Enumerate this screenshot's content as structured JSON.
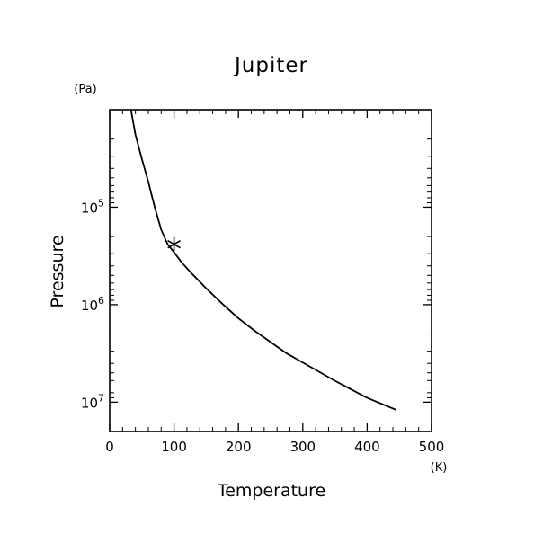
{
  "chart_data": {
    "type": "line",
    "title": "Jupiter",
    "xlabel": "Temperature",
    "ylabel": "Pressure",
    "x_unit": "(K)",
    "y_unit": "(Pa)",
    "xlim": [
      0,
      500
    ],
    "ylim": [
      10000.0,
      20000000.0
    ],
    "y_scale": "log",
    "y_inverted": true,
    "grid": false,
    "x_ticks": [
      0,
      100,
      200,
      300,
      400,
      500
    ],
    "x_tick_labels": [
      "0",
      "100",
      "200",
      "300",
      "400",
      "500"
    ],
    "y_ticks": [
      100000.0,
      1000000.0,
      10000000.0
    ],
    "y_tick_labels": [
      {
        "base": "10",
        "exp": "5"
      },
      {
        "base": "10",
        "exp": "6"
      },
      {
        "base": "10",
        "exp": "7"
      }
    ],
    "series": [
      {
        "x": [
          33,
          40,
          50,
          60,
          70,
          80,
          90,
          100,
          112,
          125,
          150,
          175,
          200,
          225,
          250,
          275,
          300,
          350,
          400,
          445
        ],
        "y": [
          10000,
          18000,
          32000,
          55000,
          100000,
          170000,
          240000,
          290000,
          370000,
          460000,
          680000,
          980000,
          1380000,
          1850000,
          2420000,
          3160000,
          3920000,
          6040000,
          9040000,
          12000000
        ]
      }
    ],
    "marker": {
      "symbol": "asterisk",
      "x": 100,
      "y": 240000
    }
  }
}
